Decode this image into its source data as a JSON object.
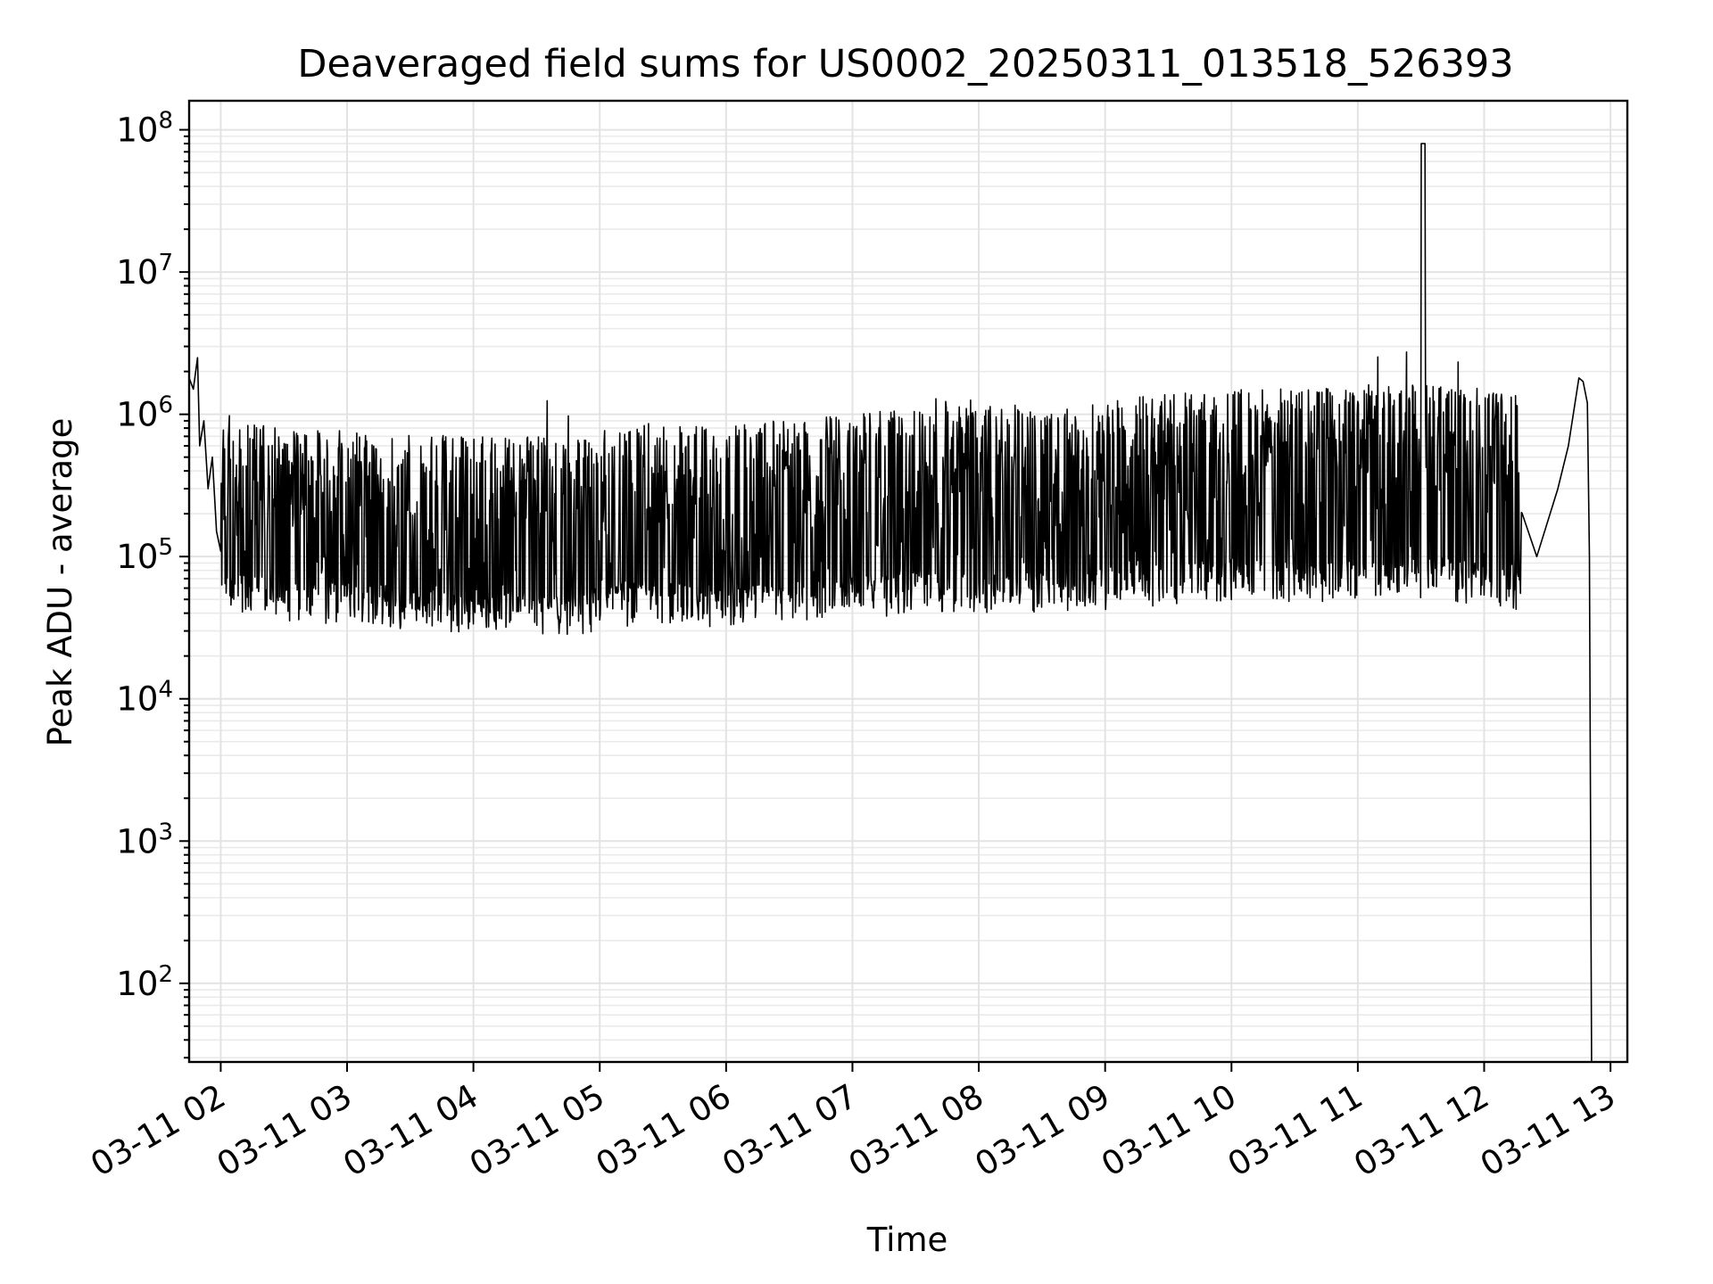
{
  "chart_data": {
    "type": "line",
    "title": "Deaveraged field sums for US0002_20250311_013518_526393",
    "xlabel": "Time",
    "ylabel": "Peak ADU - average",
    "xscale": "time",
    "yscale": "log",
    "xlim": [
      "2025-03-11T01:45",
      "2025-03-11T13:08"
    ],
    "ylim": [
      28,
      160000000
    ],
    "grid": "on (major and minor)",
    "x_tick_labels": [
      "03-11 02",
      "03-11 03",
      "03-11 04",
      "03-11 05",
      "03-11 06",
      "03-11 07",
      "03-11 08",
      "03-11 09",
      "03-11 10",
      "03-11 11",
      "03-11 12",
      "03-11 13"
    ],
    "x_ticks": [
      "2025-03-11T02:00",
      "2025-03-11T03:00",
      "2025-03-11T04:00",
      "2025-03-11T05:00",
      "2025-03-11T06:00",
      "2025-03-11T07:00",
      "2025-03-11T08:00",
      "2025-03-11T09:00",
      "2025-03-11T10:00",
      "2025-03-11T11:00",
      "2025-03-11T12:00",
      "2025-03-11T13:00"
    ],
    "y_ticks": [
      100,
      1000,
      10000,
      100000,
      1000000,
      10000000,
      100000000
    ],
    "y_tick_labels": [
      {
        "base": "10",
        "exp": "2"
      },
      {
        "base": "10",
        "exp": "3"
      },
      {
        "base": "10",
        "exp": "4"
      },
      {
        "base": "10",
        "exp": "5"
      },
      {
        "base": "10",
        "exp": "6"
      },
      {
        "base": "10",
        "exp": "7"
      },
      {
        "base": "10",
        "exp": "8"
      }
    ],
    "series": [
      {
        "color": "#000000",
        "points": [
          [
            "2025-03-11T01:45",
            1800000
          ],
          [
            "2025-03-11T01:47",
            1500000
          ],
          [
            "2025-03-11T01:49",
            2500000
          ],
          [
            "2025-03-11T01:50",
            600000
          ],
          [
            "2025-03-11T01:52",
            900000
          ],
          [
            "2025-03-11T01:54",
            300000
          ],
          [
            "2025-03-11T01:56",
            500000
          ],
          [
            "2025-03-11T01:58",
            150000
          ],
          [
            "2025-03-11T02:00",
            90000
          ],
          [
            "2025-03-11T02:06",
            60000
          ],
          [
            "2025-03-11T02:15",
            55000
          ],
          [
            "2025-03-11T02:30",
            50000
          ],
          [
            "2025-03-11T02:45",
            48000
          ],
          [
            "2025-03-11T03:00",
            47000
          ],
          [
            "2025-03-11T03:20",
            45000
          ],
          [
            "2025-03-11T03:40",
            42000
          ],
          [
            "2025-03-11T04:00",
            42000
          ],
          [
            "2025-03-11T04:30",
            40000
          ],
          [
            "2025-03-11T04:50",
            38000
          ],
          [
            "2025-03-11T05:00",
            45000
          ],
          [
            "2025-03-11T05:30",
            48000
          ],
          [
            "2025-03-11T06:00",
            45000
          ],
          [
            "2025-03-11T06:30",
            48000
          ],
          [
            "2025-03-11T07:00",
            52000
          ],
          [
            "2025-03-11T07:30",
            55000
          ],
          [
            "2025-03-11T08:00",
            58000
          ],
          [
            "2025-03-11T08:30",
            55000
          ],
          [
            "2025-03-11T09:00",
            60000
          ],
          [
            "2025-03-11T09:30",
            65000
          ],
          [
            "2025-03-11T10:00",
            70000
          ],
          [
            "2025-03-11T10:30",
            68000
          ],
          [
            "2025-03-11T11:00",
            70000
          ],
          [
            "2025-03-11T11:31",
            80000000
          ],
          [
            "2025-03-11T11:40",
            70000
          ],
          [
            "2025-03-11T12:00",
            65000
          ],
          [
            "2025-03-11T12:18",
            60000
          ],
          [
            "2025-03-11T12:25",
            100000
          ],
          [
            "2025-03-11T12:35",
            300000
          ],
          [
            "2025-03-11T12:40",
            600000
          ],
          [
            "2025-03-11T12:45",
            1800000
          ],
          [
            "2025-03-11T12:47",
            1700000
          ],
          [
            "2025-03-11T12:49",
            1200000
          ],
          [
            "2025-03-11T12:50",
            100000
          ],
          [
            "2025-03-11T12:51",
            28
          ]
        ]
      }
    ]
  }
}
